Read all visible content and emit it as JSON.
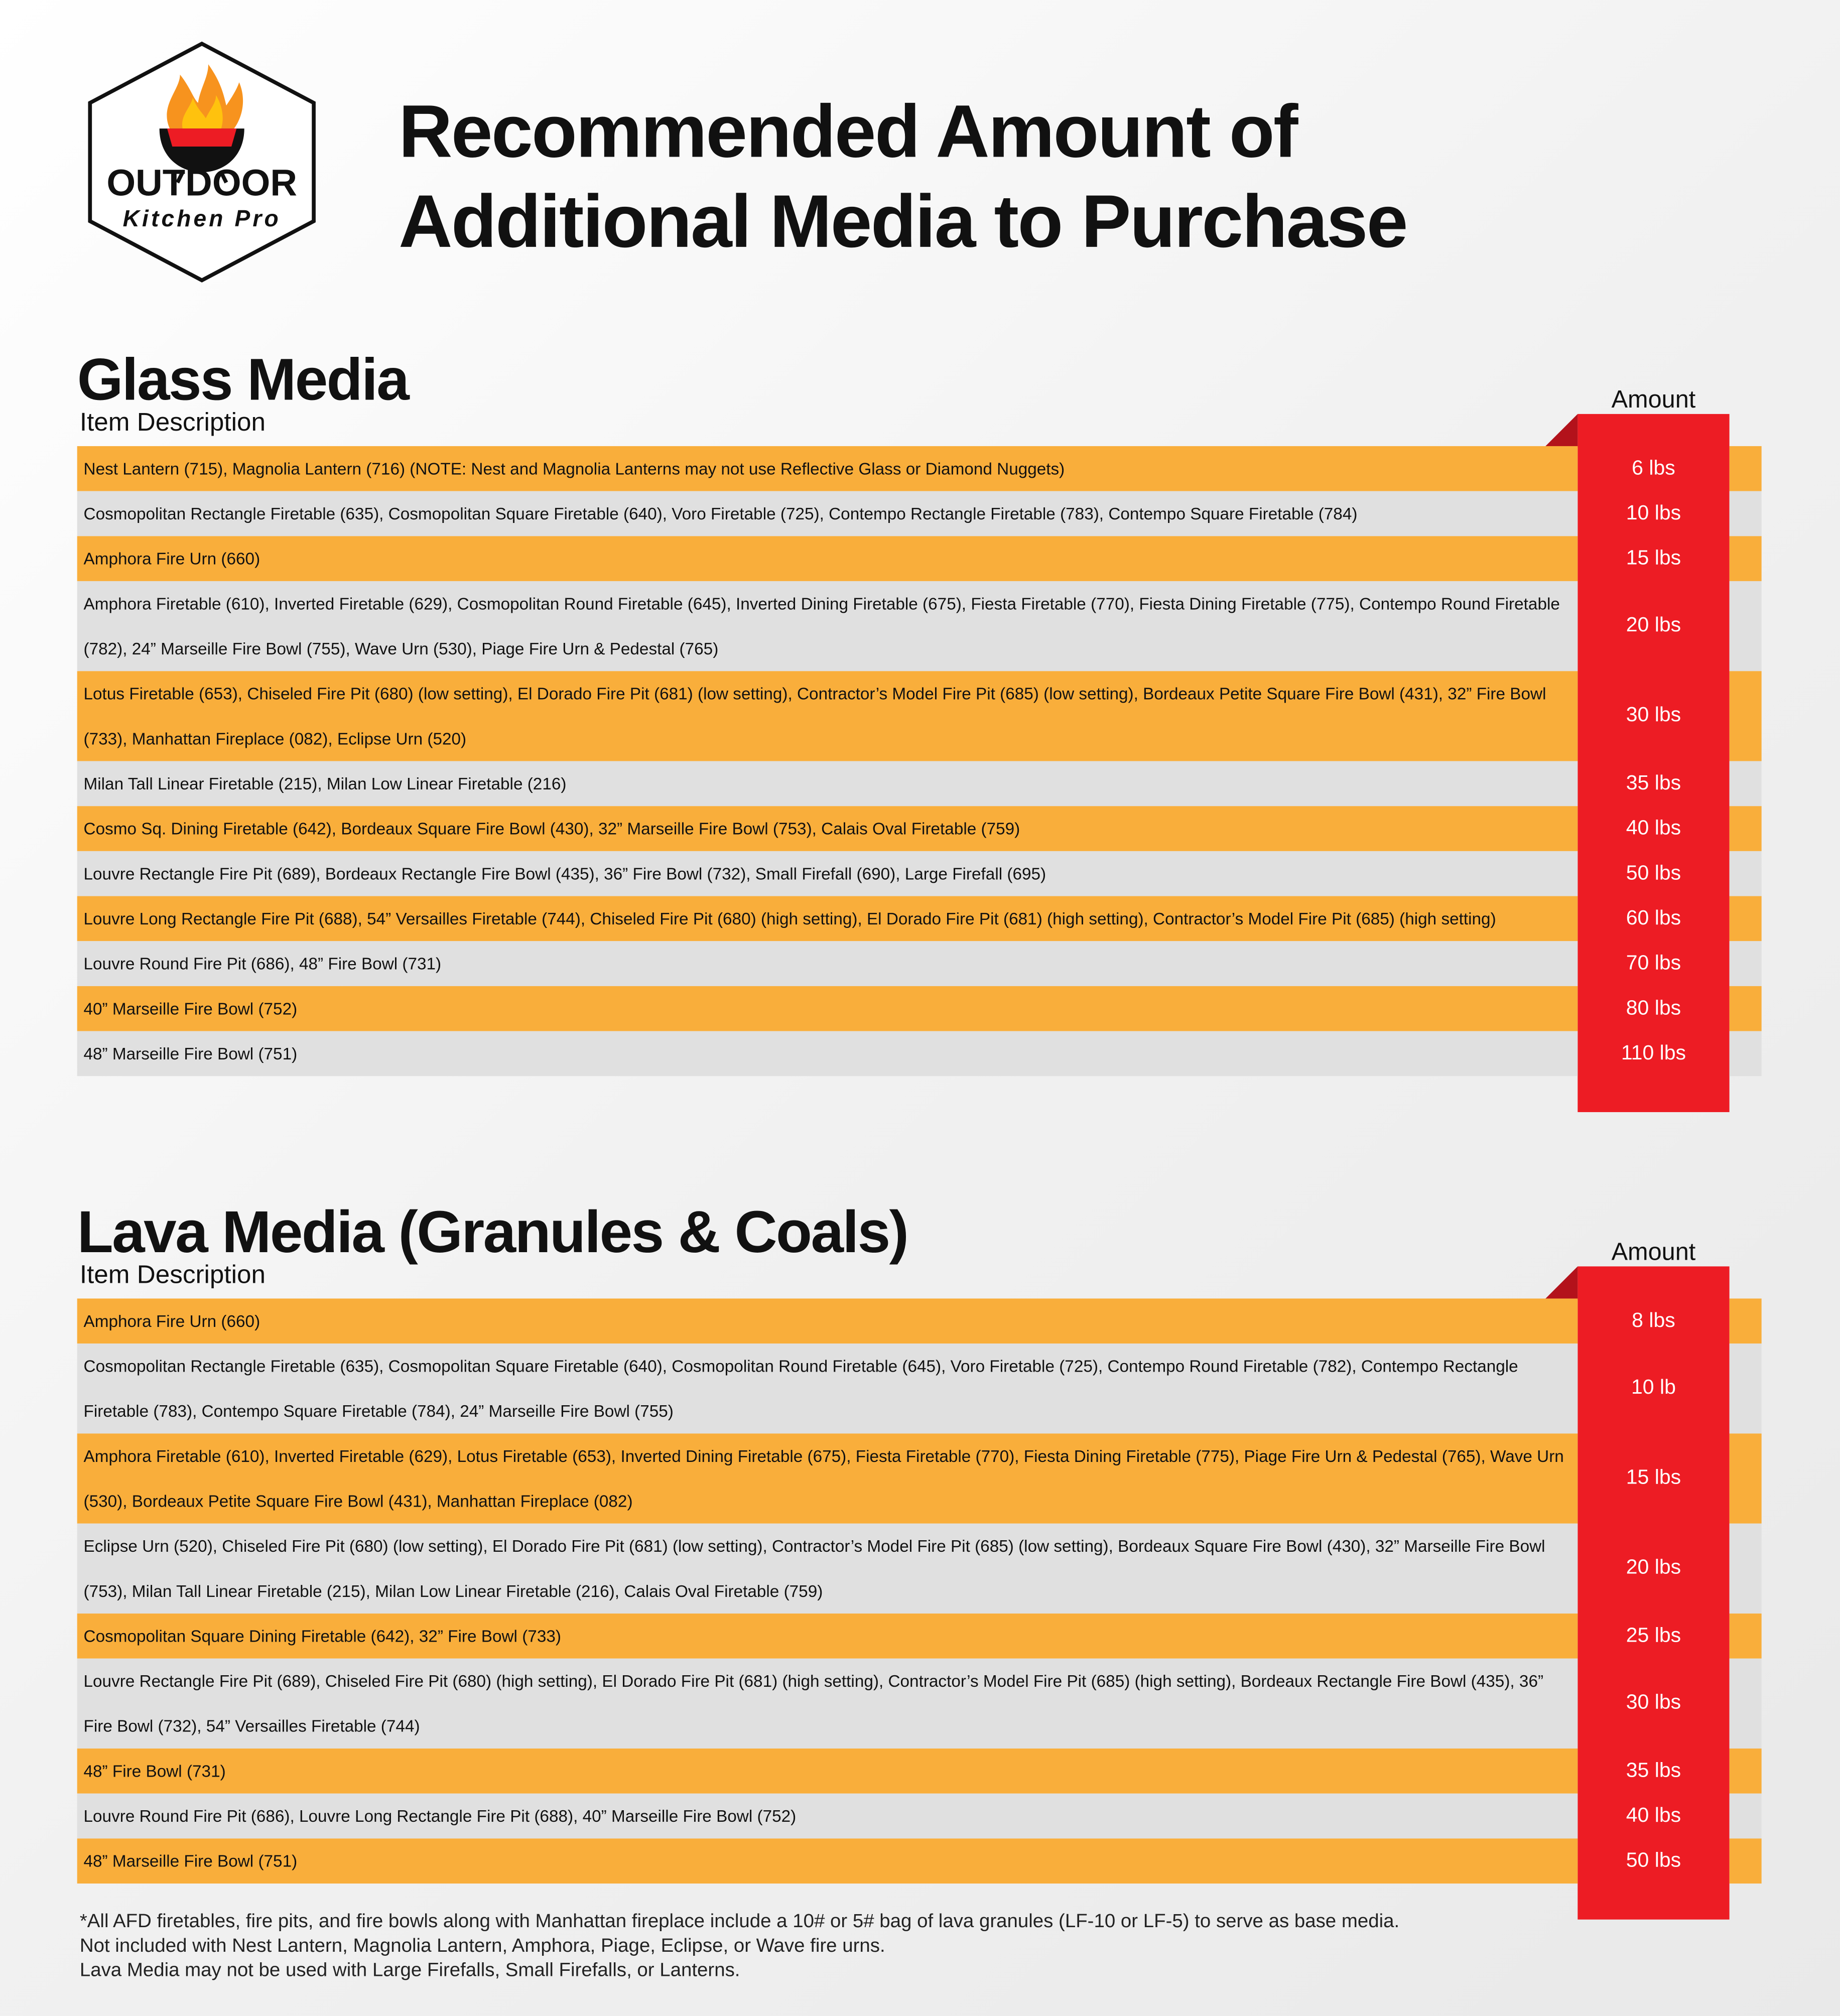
{
  "logo": {
    "line1": "OUTDOOR",
    "line2": "Kitchen Pro"
  },
  "title": "Recommended Amount of Additional Media to Purchase",
  "sections": [
    {
      "heading": "Glass Media",
      "column_description": "Item Description",
      "column_amount": "Amount",
      "rows": [
        {
          "description": "Nest Lantern (715), Magnolia Lantern (716) (NOTE: Nest and Magnolia Lanterns may not use Reflective Glass or Diamond Nuggets)",
          "amount": "6 lbs"
        },
        {
          "description": "Cosmopolitan Rectangle Firetable (635), Cosmopolitan Square Firetable (640), Voro Firetable (725), Contempo Rectangle Firetable (783), Contempo Square Firetable (784)",
          "amount": "10 lbs"
        },
        {
          "description": "Amphora Fire Urn (660)",
          "amount": "15 lbs"
        },
        {
          "description": "Amphora Firetable (610), Inverted Firetable (629), Cosmopolitan Round Firetable (645), Inverted Dining Firetable (675), Fiesta Firetable (770), Fiesta Dining Firetable (775), Contempo Round Firetable (782), 24” Marseille Fire Bowl (755), Wave Urn (530), Piage Fire Urn & Pedestal (765)",
          "amount": "20 lbs"
        },
        {
          "description": "Lotus Firetable (653), Chiseled Fire Pit (680) (low setting), El Dorado Fire Pit (681) (low setting), Contractor’s Model Fire Pit (685) (low setting), Bordeaux Petite Square Fire Bowl (431), 32” Fire Bowl (733), Manhattan Fireplace (082), Eclipse Urn (520)",
          "amount": "30 lbs"
        },
        {
          "description": "Milan Tall Linear Firetable (215), Milan Low Linear Firetable (216)",
          "amount": "35 lbs"
        },
        {
          "description": "Cosmo Sq. Dining Firetable (642), Bordeaux Square Fire Bowl (430), 32” Marseille Fire Bowl (753), Calais Oval Firetable (759)",
          "amount": "40 lbs"
        },
        {
          "description": "Louvre Rectangle Fire Pit (689), Bordeaux Rectangle Fire Bowl (435), 36” Fire Bowl (732), Small Firefall (690), Large Firefall (695)",
          "amount": "50 lbs"
        },
        {
          "description": "Louvre Long Rectangle Fire Pit (688), 54” Versailles Firetable (744), Chiseled Fire Pit (680) (high setting), El Dorado Fire Pit (681) (high setting), Contractor’s Model Fire Pit (685) (high setting)",
          "amount": "60 lbs"
        },
        {
          "description": "Louvre Round Fire Pit (686), 48” Fire Bowl (731)",
          "amount": "70 lbs"
        },
        {
          "description": "40” Marseille Fire Bowl (752)",
          "amount": "80 lbs"
        },
        {
          "description": "48” Marseille Fire Bowl (751)",
          "amount": "110 lbs"
        }
      ]
    },
    {
      "heading": "Lava Media (Granules & Coals)",
      "column_description": "Item Description",
      "column_amount": "Amount",
      "rows": [
        {
          "description": "Amphora Fire Urn (660)",
          "amount": "8 lbs"
        },
        {
          "description": "Cosmopolitan Rectangle Firetable (635), Cosmopolitan Square Firetable (640), Cosmopolitan Round Firetable (645), Voro Firetable (725), Contempo Round Firetable (782), Contempo Rectangle Firetable (783), Contempo Square Firetable (784), 24” Marseille Fire Bowl (755)",
          "amount": "10 lb"
        },
        {
          "description": "Amphora Firetable (610), Inverted Firetable (629), Lotus Firetable (653), Inverted Dining Firetable (675), Fiesta Firetable (770), Fiesta Dining Firetable (775), Piage Fire Urn & Pedestal (765), Wave Urn (530), Bordeaux Petite Square Fire Bowl (431), Manhattan Fireplace (082)",
          "amount": "15 lbs"
        },
        {
          "description": "Eclipse Urn (520), Chiseled Fire Pit (680) (low setting), El Dorado Fire Pit (681) (low setting), Contractor’s Model Fire Pit (685) (low setting), Bordeaux Square Fire Bowl (430), 32” Marseille Fire Bowl (753), Milan Tall Linear Firetable (215), Milan Low Linear Firetable (216), Calais Oval Firetable (759)",
          "amount": "20 lbs"
        },
        {
          "description": "Cosmopolitan Square Dining Firetable (642), 32” Fire Bowl (733)",
          "amount": "25 lbs"
        },
        {
          "description": "Louvre Rectangle Fire Pit (689), Chiseled Fire Pit (680) (high setting), El Dorado Fire Pit (681) (high setting), Contractor’s Model Fire Pit (685) (high setting), Bordeaux Rectangle Fire Bowl (435), 36” Fire Bowl (732), 54” Versailles Firetable (744)",
          "amount": "30 lbs"
        },
        {
          "description": "48” Fire Bowl (731)",
          "amount": "35 lbs"
        },
        {
          "description": "Louvre Round Fire Pit (686), Louvre Long Rectangle Fire Pit (688), 40” Marseille Fire Bowl (752)",
          "amount": "40 lbs"
        },
        {
          "description": "48” Marseille Fire Bowl (751)",
          "amount": "50 lbs"
        }
      ]
    }
  ],
  "footnote": [
    "*All AFD firetables, fire pits, and fire bowls along with Manhattan fireplace include a 10# or 5# bag of lava granules (LF-10 or LF-5) to serve as base media.",
    "Not included with Nest Lantern, Magnolia Lantern, Amphora, Piage, Eclipse, or Wave fire urns.",
    "Lava Media may not be used with Large Firefalls, Small Firefalls, or Lanterns."
  ]
}
